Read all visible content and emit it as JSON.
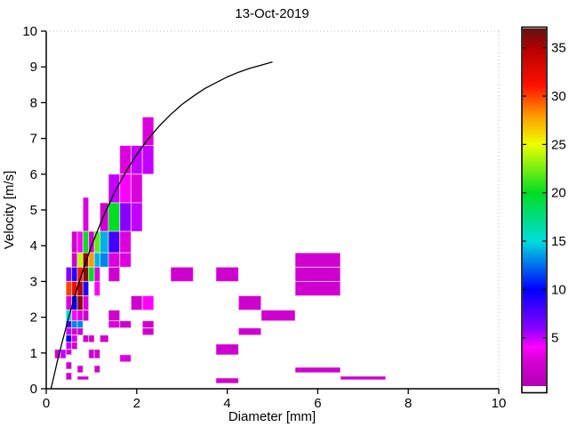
{
  "figure": {
    "background": "#ffffff",
    "accent_colors": {
      "axis": "#000000",
      "box_faint": "#b8b8b8",
      "cell_edge": "rgba(255,255,255,0.55)"
    }
  },
  "chart_data": {
    "type": "heatmap",
    "title": "13-Oct-2019",
    "xlabel": "Diameter [mm]",
    "ylabel": "Velocity [m/s]",
    "xlim": [
      0,
      10
    ],
    "ylim": [
      0,
      10
    ],
    "x_ticks": [
      0,
      2,
      4,
      6,
      8,
      10
    ],
    "y_ticks": [
      0,
      1,
      2,
      3,
      4,
      5,
      6,
      7,
      8,
      9,
      10
    ],
    "grid": false,
    "legend_position": "none",
    "colorbar": {
      "range": [
        0,
        37
      ],
      "ticks": [
        5,
        10,
        15,
        20,
        25,
        30,
        35
      ],
      "stops": [
        [
          0.0,
          "#B400B4"
        ],
        [
          0.081,
          "#DC00DC"
        ],
        [
          0.108,
          "#FF00FF"
        ],
        [
          0.162,
          "#8800FF"
        ],
        [
          0.27,
          "#0000FF"
        ],
        [
          0.405,
          "#00DDDD"
        ],
        [
          0.54,
          "#00DD22"
        ],
        [
          0.676,
          "#EEFF00"
        ],
        [
          0.757,
          "#FF9900"
        ],
        [
          0.84,
          "#FF1100"
        ],
        [
          0.946,
          "#B30000"
        ],
        [
          1.0,
          "#5E1414"
        ]
      ]
    },
    "cells_format": [
      "d_min_mm",
      "d_max_mm",
      "v_min_ms",
      "v_max_ms",
      "count"
    ],
    "cells": [
      [
        2.125,
        2.375,
        6.8,
        7.6,
        3
      ],
      [
        1.625,
        1.875,
        6.0,
        6.8,
        3
      ],
      [
        1.875,
        2.125,
        6.0,
        6.8,
        5
      ],
      [
        2.125,
        2.375,
        6.0,
        6.8,
        5
      ],
      [
        1.375,
        1.625,
        5.2,
        6.0,
        5
      ],
      [
        1.625,
        1.875,
        5.2,
        6.0,
        4
      ],
      [
        1.875,
        2.125,
        5.2,
        6.0,
        3
      ],
      [
        0.812,
        0.937,
        4.4,
        5.35,
        3
      ],
      [
        1.187,
        1.375,
        4.4,
        5.2,
        2
      ],
      [
        1.375,
        1.625,
        4.4,
        5.2,
        20
      ],
      [
        1.625,
        1.875,
        4.4,
        5.2,
        6
      ],
      [
        1.875,
        2.125,
        4.4,
        5.2,
        5
      ],
      [
        0.562,
        0.687,
        3.8,
        4.4,
        2
      ],
      [
        0.687,
        0.812,
        3.8,
        4.4,
        4
      ],
      [
        0.812,
        0.937,
        3.8,
        4.4,
        20
      ],
      [
        0.937,
        1.062,
        3.8,
        4.4,
        2
      ],
      [
        1.062,
        1.187,
        3.8,
        4.4,
        22
      ],
      [
        1.187,
        1.375,
        3.8,
        4.4,
        14
      ],
      [
        1.375,
        1.625,
        3.8,
        4.4,
        8
      ],
      [
        1.625,
        1.875,
        3.8,
        4.4,
        3
      ],
      [
        0.562,
        0.687,
        3.4,
        3.8,
        2
      ],
      [
        0.687,
        0.812,
        3.4,
        3.8,
        24
      ],
      [
        0.812,
        0.937,
        3.4,
        3.8,
        36
      ],
      [
        0.937,
        1.062,
        3.4,
        3.8,
        28
      ],
      [
        1.062,
        1.187,
        3.4,
        3.8,
        14
      ],
      [
        1.187,
        1.375,
        3.4,
        3.8,
        13
      ],
      [
        1.375,
        1.625,
        3.4,
        3.8,
        3
      ],
      [
        1.625,
        1.875,
        3.4,
        3.8,
        3
      ],
      [
        0.437,
        0.562,
        3.0,
        3.4,
        6
      ],
      [
        0.562,
        0.687,
        3.0,
        3.4,
        9
      ],
      [
        0.687,
        0.812,
        3.0,
        3.4,
        31
      ],
      [
        0.812,
        0.937,
        3.0,
        3.4,
        36
      ],
      [
        0.937,
        1.062,
        3.0,
        3.4,
        20
      ],
      [
        1.062,
        1.187,
        3.0,
        3.4,
        3
      ],
      [
        1.375,
        1.625,
        3.0,
        3.4,
        2
      ],
      [
        2.75,
        3.25,
        3.0,
        3.4,
        2
      ],
      [
        3.75,
        4.25,
        3.0,
        3.4,
        2
      ],
      [
        0.437,
        0.562,
        2.6,
        3.0,
        30
      ],
      [
        0.562,
        0.687,
        2.6,
        3.0,
        32
      ],
      [
        0.687,
        0.812,
        2.6,
        3.0,
        35
      ],
      [
        0.812,
        0.937,
        2.6,
        3.0,
        9
      ],
      [
        1.062,
        1.187,
        2.6,
        3.0,
        4
      ],
      [
        5.5,
        6.5,
        2.6,
        3.0,
        2
      ],
      [
        5.5,
        6.5,
        3.0,
        3.4,
        2
      ],
      [
        5.5,
        6.5,
        3.4,
        3.8,
        2
      ],
      [
        0.437,
        0.562,
        2.2,
        2.6,
        3
      ],
      [
        0.562,
        0.687,
        2.2,
        2.6,
        10
      ],
      [
        0.687,
        0.812,
        2.2,
        2.6,
        36
      ],
      [
        0.812,
        0.937,
        2.2,
        2.6,
        3
      ],
      [
        1.875,
        2.125,
        2.2,
        2.6,
        2
      ],
      [
        2.125,
        2.375,
        2.2,
        2.6,
        4
      ],
      [
        4.25,
        4.75,
        2.2,
        2.6,
        2
      ],
      [
        0.437,
        0.562,
        1.9,
        2.2,
        15
      ],
      [
        0.562,
        0.687,
        1.9,
        2.2,
        4
      ],
      [
        0.687,
        0.812,
        1.9,
        2.2,
        3
      ],
      [
        0.812,
        0.937,
        1.9,
        2.2,
        2
      ],
      [
        1.375,
        1.625,
        1.9,
        2.2,
        2
      ],
      [
        4.75,
        5.5,
        1.9,
        2.2,
        2
      ],
      [
        0.437,
        0.562,
        1.7,
        1.9,
        8
      ],
      [
        0.562,
        0.687,
        1.7,
        1.9,
        13
      ],
      [
        0.687,
        0.812,
        1.7,
        1.9,
        13
      ],
      [
        1.375,
        1.625,
        1.7,
        1.9,
        3
      ],
      [
        1.625,
        1.875,
        1.7,
        1.9,
        2
      ],
      [
        2.125,
        2.375,
        1.7,
        1.9,
        2
      ],
      [
        0.437,
        0.562,
        1.5,
        1.7,
        5
      ],
      [
        0.562,
        0.687,
        1.5,
        1.7,
        2
      ],
      [
        0.687,
        0.812,
        1.5,
        1.7,
        2
      ],
      [
        2.125,
        2.375,
        1.5,
        1.7,
        2
      ],
      [
        4.25,
        4.75,
        1.5,
        1.7,
        2
      ],
      [
        0.437,
        0.562,
        1.3,
        1.5,
        10
      ],
      [
        0.562,
        0.687,
        1.3,
        1.5,
        3
      ],
      [
        0.812,
        0.937,
        1.3,
        1.5,
        2
      ],
      [
        0.937,
        1.062,
        1.3,
        1.5,
        2
      ],
      [
        1.187,
        1.375,
        1.3,
        1.5,
        2
      ],
      [
        0.437,
        0.562,
        1.1,
        1.3,
        5
      ],
      [
        0.562,
        0.687,
        1.1,
        1.3,
        2
      ],
      [
        3.75,
        4.25,
        0.95,
        1.25,
        2
      ],
      [
        0.187,
        0.312,
        0.85,
        1.1,
        2
      ],
      [
        0.312,
        0.437,
        0.85,
        1.1,
        5
      ],
      [
        0.437,
        0.562,
        0.95,
        1.1,
        2
      ],
      [
        0.937,
        1.062,
        0.85,
        1.1,
        2
      ],
      [
        1.062,
        1.187,
        0.85,
        1.1,
        2
      ],
      [
        1.625,
        1.875,
        0.75,
        0.95,
        3
      ],
      [
        0.437,
        0.562,
        0.55,
        0.75,
        2
      ],
      [
        0.687,
        0.812,
        0.45,
        0.65,
        2
      ],
      [
        1.062,
        1.187,
        0.45,
        0.65,
        2
      ],
      [
        5.5,
        6.5,
        0.45,
        0.6,
        2
      ],
      [
        0.437,
        0.562,
        0.25,
        0.45,
        2
      ],
      [
        0.687,
        0.937,
        0.25,
        0.35,
        2
      ],
      [
        6.5,
        7.5,
        0.25,
        0.35,
        2
      ],
      [
        3.75,
        4.25,
        0.15,
        0.3,
        2
      ]
    ],
    "curve": {
      "name": "terminal-velocity-curve",
      "color": "#000000",
      "points": [
        [
          0.105,
          0.0
        ],
        [
          0.15,
          0.24
        ],
        [
          0.2,
          0.52
        ],
        [
          0.25,
          0.79
        ],
        [
          0.35,
          1.29
        ],
        [
          0.5,
          2.02
        ],
        [
          0.65,
          2.67
        ],
        [
          0.75,
          3.08
        ],
        [
          0.9,
          3.63
        ],
        [
          1.0,
          4.0
        ],
        [
          1.25,
          4.78
        ],
        [
          1.5,
          5.46
        ],
        [
          1.75,
          6.05
        ],
        [
          2.0,
          6.55
        ],
        [
          2.25,
          6.98
        ],
        [
          2.5,
          7.35
        ],
        [
          2.75,
          7.67
        ],
        [
          3.0,
          7.95
        ],
        [
          3.25,
          8.18
        ],
        [
          3.5,
          8.39
        ],
        [
          3.75,
          8.56
        ],
        [
          4.0,
          8.72
        ],
        [
          4.25,
          8.85
        ],
        [
          4.5,
          8.96
        ],
        [
          4.75,
          9.05
        ],
        [
          5.0,
          9.14
        ]
      ]
    }
  }
}
